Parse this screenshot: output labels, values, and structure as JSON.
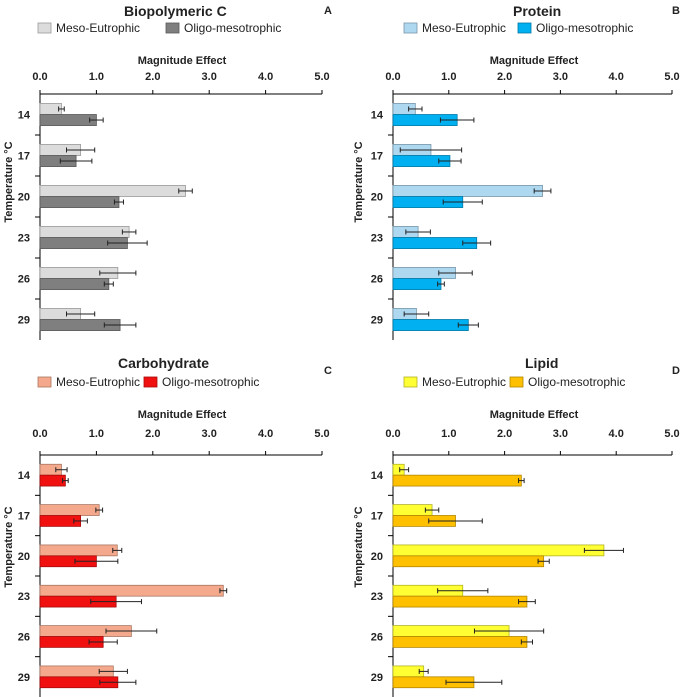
{
  "chart_data": [
    {
      "type": "bar",
      "orientation": "horizontal",
      "title": "Biopolymeric C",
      "panel_label": "A",
      "xlabel": "Magnitude Effect",
      "ylabel": "Temperature °C",
      "xlim": [
        0,
        5
      ],
      "xticks": [
        "0.0",
        "1.0",
        "2.0",
        "3.0",
        "4.0",
        "5.0"
      ],
      "categories": [
        "14",
        "17",
        "20",
        "23",
        "26",
        "29"
      ],
      "legend_position": "top",
      "series": [
        {
          "name": "Meso-Eutrophic",
          "color": "#dcdcdc",
          "values": [
            0.38,
            0.72,
            2.58,
            1.58,
            1.38,
            0.72
          ],
          "errors": [
            0.05,
            0.25,
            0.12,
            0.12,
            0.32,
            0.25
          ]
        },
        {
          "name": "Oligo-mesotrophic",
          "color": "#7f7f7f",
          "values": [
            1.0,
            0.64,
            1.4,
            1.55,
            1.22,
            1.42
          ],
          "errors": [
            0.12,
            0.28,
            0.08,
            0.35,
            0.08,
            0.28
          ]
        }
      ]
    },
    {
      "type": "bar",
      "orientation": "horizontal",
      "title": "Protein",
      "panel_label": "B",
      "xlabel": "Magnitude Effect",
      "ylabel": "Temperature °C",
      "xlim": [
        0,
        5
      ],
      "xticks": [
        "0.0",
        "1.0",
        "2.0",
        "3.0",
        "4.0",
        "5.0"
      ],
      "categories": [
        "14",
        "17",
        "20",
        "23",
        "26",
        "29"
      ],
      "legend_position": "top",
      "series": [
        {
          "name": "Meso-Eutrophic",
          "color": "#add8f0",
          "values": [
            0.4,
            0.68,
            2.68,
            0.45,
            1.12,
            0.42
          ],
          "errors": [
            0.12,
            0.55,
            0.15,
            0.22,
            0.3,
            0.22
          ]
        },
        {
          "name": "Oligo-mesotrophic",
          "color": "#00b0f0",
          "values": [
            1.15,
            1.02,
            1.25,
            1.5,
            0.86,
            1.35
          ],
          "errors": [
            0.3,
            0.2,
            0.35,
            0.25,
            0.06,
            0.18
          ]
        }
      ]
    },
    {
      "type": "bar",
      "orientation": "horizontal",
      "title": "Carbohydrate",
      "panel_label": "C",
      "xlabel": "Magnitude Effect",
      "ylabel": "Temperature °C",
      "xlim": [
        0,
        5
      ],
      "xticks": [
        "0.0",
        "1.0",
        "2.0",
        "3.0",
        "4.0",
        "5.0"
      ],
      "categories": [
        "14",
        "17",
        "20",
        "23",
        "26",
        "29"
      ],
      "legend_position": "top",
      "series": [
        {
          "name": "Meso-Eutrophic",
          "color": "#f4a98c",
          "values": [
            0.38,
            1.05,
            1.37,
            3.25,
            1.62,
            1.3
          ],
          "errors": [
            0.1,
            0.06,
            0.08,
            0.06,
            0.45,
            0.25
          ]
        },
        {
          "name": "Oligo-mesotrophic",
          "color": "#f01010",
          "values": [
            0.45,
            0.72,
            1.0,
            1.35,
            1.12,
            1.38
          ],
          "errors": [
            0.05,
            0.12,
            0.38,
            0.45,
            0.25,
            0.32
          ]
        }
      ]
    },
    {
      "type": "bar",
      "orientation": "horizontal",
      "title": "Lipid",
      "panel_label": "D",
      "xlabel": "Magnitude Effect",
      "ylabel": "Temperature °C",
      "xlim": [
        0,
        5
      ],
      "xticks": [
        "0.0",
        "1.0",
        "2.0",
        "3.0",
        "4.0",
        "5.0"
      ],
      "categories": [
        "14",
        "17",
        "20",
        "23",
        "26",
        "29"
      ],
      "legend_position": "top",
      "series": [
        {
          "name": "Meso-Eutrophic",
          "color": "#ffff33",
          "values": [
            0.2,
            0.7,
            3.78,
            1.25,
            2.08,
            0.55
          ],
          "errors": [
            0.08,
            0.12,
            0.35,
            0.45,
            0.62,
            0.08
          ]
        },
        {
          "name": "Oligo-mesotrophic",
          "color": "#ffc000",
          "values": [
            2.3,
            1.12,
            2.7,
            2.4,
            2.4,
            1.45
          ],
          "errors": [
            0.05,
            0.48,
            0.1,
            0.15,
            0.1,
            0.5
          ]
        }
      ]
    }
  ]
}
